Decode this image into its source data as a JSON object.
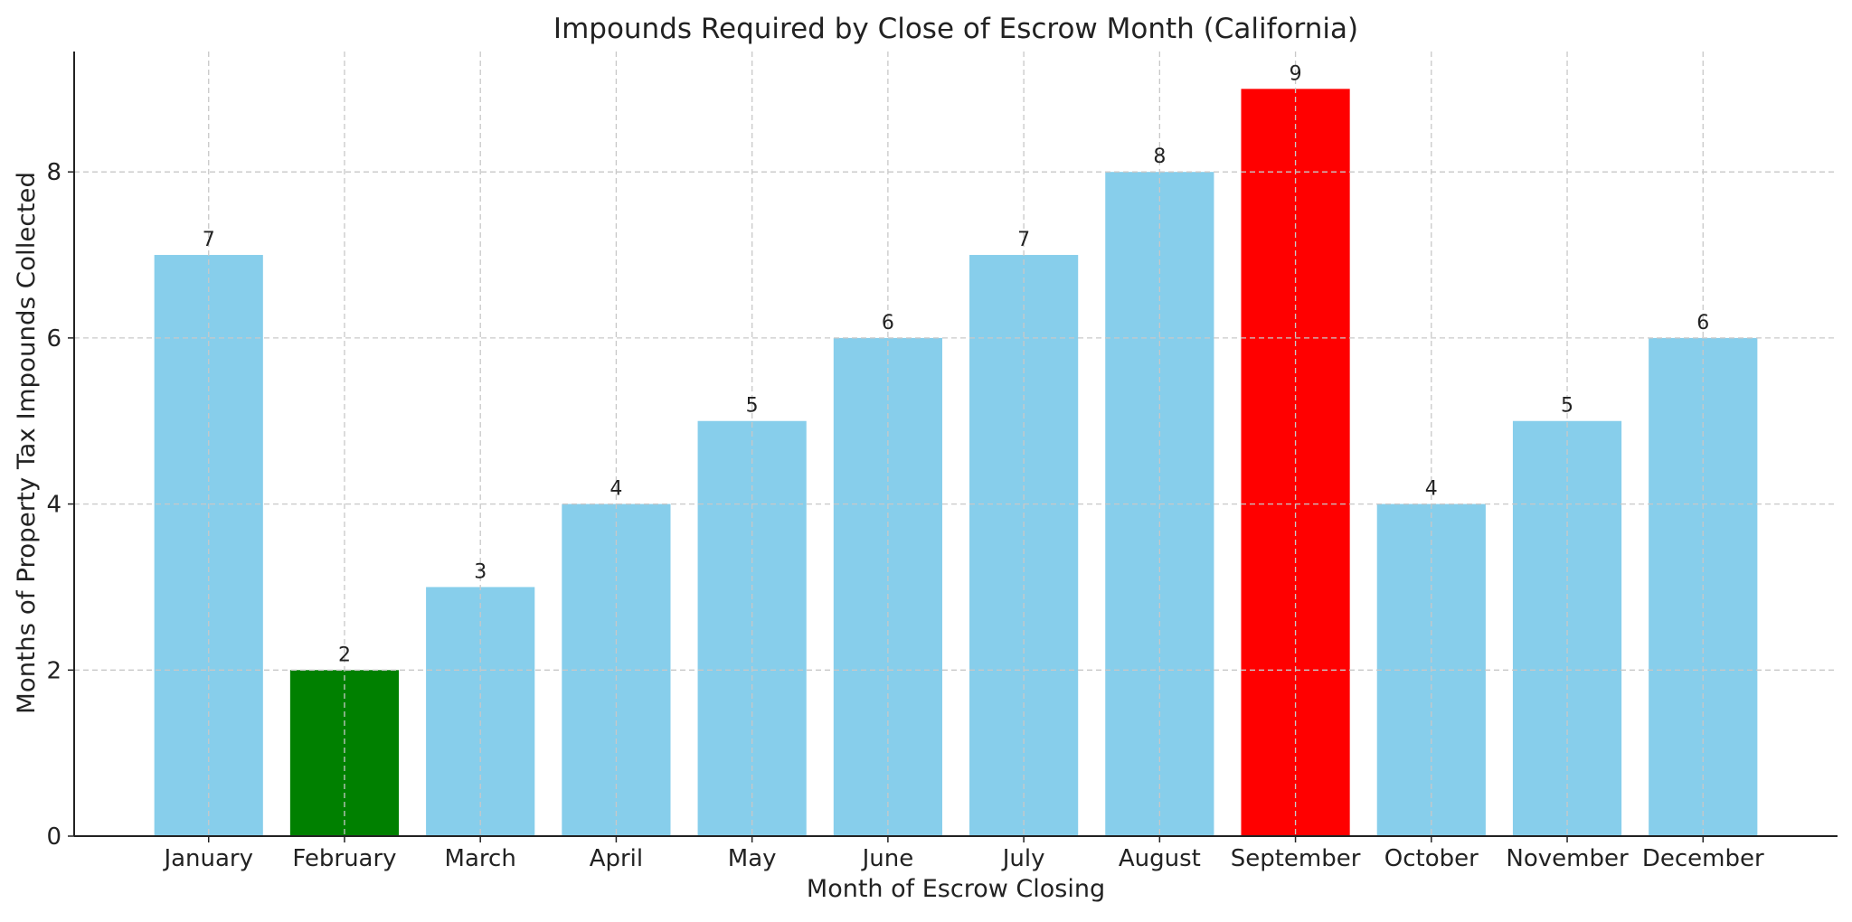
{
  "chart_data": {
    "type": "bar",
    "title": "Impounds Required by Close of Escrow Month (California)",
    "xlabel": "Month of Escrow Closing",
    "ylabel": "Months of Property Tax Impounds Collected",
    "categories": [
      "January",
      "February",
      "March",
      "April",
      "May",
      "June",
      "July",
      "August",
      "September",
      "October",
      "November",
      "December"
    ],
    "values": [
      7,
      2,
      3,
      4,
      5,
      6,
      7,
      8,
      9,
      4,
      5,
      6
    ],
    "bar_colors": [
      "#87CEEB",
      "#008000",
      "#87CEEB",
      "#87CEEB",
      "#87CEEB",
      "#87CEEB",
      "#87CEEB",
      "#87CEEB",
      "#FF0000",
      "#87CEEB",
      "#87CEEB",
      "#87CEEB"
    ],
    "ylim": [
      0,
      9.45
    ],
    "yticks": [
      0,
      2,
      4,
      6,
      8
    ],
    "grid": true,
    "data_labels": true
  }
}
